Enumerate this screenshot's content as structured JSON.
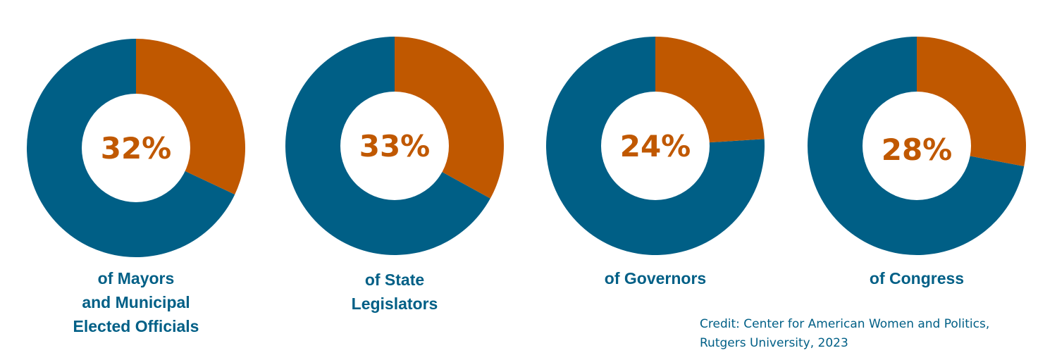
{
  "colors": {
    "women": "#c05800",
    "remainder": "#005f86",
    "hole": "#ffffff",
    "text_accent": "#c05800",
    "text_primary": "#005f86"
  },
  "chart_data": [
    {
      "type": "pie",
      "variant": "donut",
      "value_percent": 32,
      "label": "32%",
      "caption_lines": [
        "of Mayors",
        "and Municipal",
        "Elected Officials"
      ]
    },
    {
      "type": "pie",
      "variant": "donut",
      "value_percent": 33,
      "label": "33%",
      "caption_lines": [
        "of State",
        "Legislators"
      ]
    },
    {
      "type": "pie",
      "variant": "donut",
      "value_percent": 24,
      "label": "24%",
      "caption_lines": [
        "of Governors"
      ]
    },
    {
      "type": "pie",
      "variant": "donut",
      "value_percent": 28,
      "label": "28%",
      "caption_lines": [
        "of Congress"
      ]
    }
  ],
  "credit": {
    "line1": "Credit: Center for American Women and Politics,",
    "line2": "Rutgers University, 2023"
  }
}
